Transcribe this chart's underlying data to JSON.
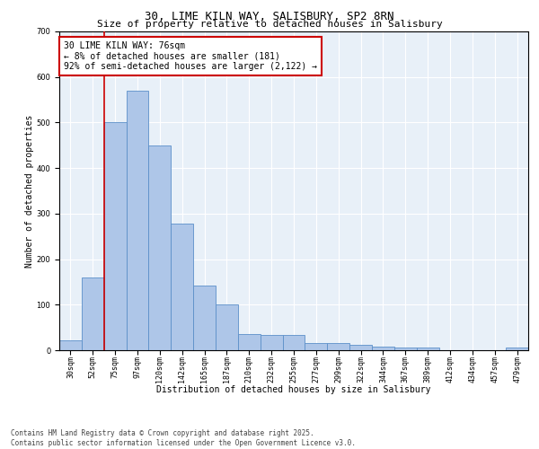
{
  "title": "30, LIME KILN WAY, SALISBURY, SP2 8RN",
  "subtitle": "Size of property relative to detached houses in Salisbury",
  "xlabel": "Distribution of detached houses by size in Salisbury",
  "ylabel": "Number of detached properties",
  "bar_labels": [
    "30sqm",
    "52sqm",
    "75sqm",
    "97sqm",
    "120sqm",
    "142sqm",
    "165sqm",
    "187sqm",
    "210sqm",
    "232sqm",
    "255sqm",
    "277sqm",
    "299sqm",
    "322sqm",
    "344sqm",
    "367sqm",
    "389sqm",
    "412sqm",
    "434sqm",
    "457sqm",
    "479sqm"
  ],
  "bar_values": [
    22,
    160,
    500,
    570,
    450,
    278,
    142,
    100,
    35,
    33,
    33,
    15,
    15,
    12,
    8,
    5,
    5,
    0,
    0,
    0,
    5
  ],
  "bar_color": "#aec6e8",
  "bar_edge_color": "#5b8fc9",
  "vline_color": "#cc0000",
  "annotation_text": "30 LIME KILN WAY: 76sqm\n← 8% of detached houses are smaller (181)\n92% of semi-detached houses are larger (2,122) →",
  "annotation_box_color": "#ffffff",
  "annotation_box_edge_color": "#cc0000",
  "ylim": [
    0,
    700
  ],
  "yticks": [
    0,
    100,
    200,
    300,
    400,
    500,
    600,
    700
  ],
  "bg_color": "#e8f0f8",
  "footer_text": "Contains HM Land Registry data © Crown copyright and database right 2025.\nContains public sector information licensed under the Open Government Licence v3.0.",
  "title_fontsize": 9,
  "subtitle_fontsize": 8,
  "axis_label_fontsize": 7,
  "tick_fontsize": 6,
  "annotation_fontsize": 7,
  "footer_fontsize": 5.5
}
